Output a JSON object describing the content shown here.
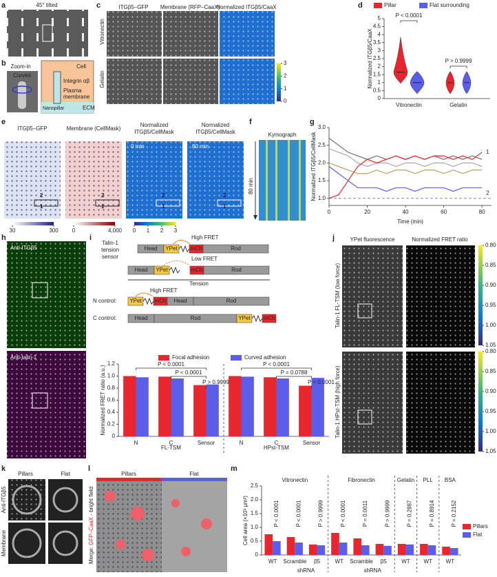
{
  "a": {
    "letter": "a",
    "label": "45° tilted"
  },
  "b": {
    "letter": "b",
    "zoom": "Zoom-in",
    "curved": "Curved",
    "cell": "Cell",
    "integrin": "Integrin αβ",
    "plasma": "Plasma",
    "membrane": "membrane",
    "nanopillar": "Nanopillar",
    "ecm": "ECM"
  },
  "c": {
    "letter": "c",
    "columns": [
      "ITGβ5–GFP",
      "Membrane (RFP–CaaX)",
      "Normalized ITGβ5/CaaX"
    ],
    "rows": [
      "Vitronectin",
      "Gelatin"
    ],
    "colorbar_ticks": [
      0,
      1,
      2,
      3
    ]
  },
  "d": {
    "letter": "d",
    "chart_data": {
      "type": "violin",
      "ylabel": "Normalized ITGβ5/CaaX",
      "categories": [
        "Vitronectin",
        "Gelatin"
      ],
      "series": [
        {
          "name": "Pillar",
          "color": "#e8262d",
          "values": [
            1.65,
            1.0
          ]
        },
        {
          "name": "Flat surrounding",
          "color": "#5b5ee8",
          "values": [
            1.0,
            1.0
          ]
        }
      ],
      "annotations": [
        "P < 0.0001",
        "P > 0.9999"
      ],
      "ylim": [
        0,
        5
      ],
      "yticks": [
        0,
        0.5,
        1,
        1.5,
        2,
        2.5,
        3,
        3.5,
        4,
        4.5,
        5
      ]
    }
  },
  "e": {
    "letter": "e",
    "titles": [
      [
        "ITGβ5–GFP"
      ],
      [
        "Membrane (CellMask)"
      ],
      [
        "Normalized",
        "ITGβ5/CellMask"
      ],
      [
        "Normalized",
        "ITGβ5/CellMask"
      ]
    ],
    "times": [
      "0 min",
      "80 min"
    ],
    "markers": [
      "1",
      "2"
    ],
    "colorbars": [
      [
        30,
        300
      ],
      [
        0,
        {
          "value": 4000,
          "label": "4,000"
        }
      ],
      [
        0,
        1,
        2,
        3
      ]
    ]
  },
  "f": {
    "letter": "f",
    "title": "Kymograph",
    "time": "80 min"
  },
  "g": {
    "letter": "g",
    "chart_data": {
      "type": "line",
      "xlabel": "Time (min)",
      "ylabel": "Normalized ITGβ5/CellMask",
      "x": [
        0,
        5,
        10,
        15,
        20,
        25,
        30,
        35,
        40,
        45,
        50,
        55,
        60,
        65,
        70,
        75,
        80
      ],
      "series": [
        {
          "color": "#6e6e6e",
          "values": [
            2.7,
            2.5,
            2.3,
            2.2,
            2.1,
            2.2,
            2.1,
            2.2,
            2.1,
            2.2,
            2.1,
            2.2,
            2.1,
            2.2,
            2.1,
            2.2,
            2.1
          ]
        },
        {
          "color": "#a8a8a8",
          "values": [
            2.4,
            2.3,
            2.2,
            2.0,
            1.9,
            2.0,
            2.0,
            1.9,
            2.0,
            2.0,
            1.9,
            2.0,
            2.0,
            1.9,
            2.0,
            2.0,
            1.9
          ]
        },
        {
          "color": "#b3a46a",
          "values": [
            2.0,
            1.9,
            1.8,
            1.7,
            1.7,
            1.8,
            1.7,
            1.8,
            1.8,
            1.7,
            1.8,
            1.8,
            1.7,
            1.8,
            1.7,
            1.8,
            1.8
          ]
        },
        {
          "color": "#e8262d",
          "label": "1",
          "values": [
            1.0,
            1.1,
            1.5,
            1.9,
            2.1,
            2.0,
            2.1,
            2.2,
            2.1,
            2.2,
            2.1,
            2.2,
            2.2,
            2.1,
            2.2,
            2.1,
            2.3
          ]
        },
        {
          "color": "#5b5ee8",
          "label": "2",
          "values": [
            1.9,
            1.7,
            1.5,
            1.3,
            1.3,
            1.3,
            1.2,
            1.3,
            1.3,
            1.2,
            1.3,
            1.3,
            1.3,
            1.2,
            1.3,
            1.3,
            1.3
          ]
        }
      ],
      "baseline": 1,
      "xlim": [
        0,
        85
      ],
      "xticks": [
        0,
        20,
        40,
        60,
        80
      ],
      "ylim": [
        0.8,
        3.0
      ],
      "yticks": [
        {
          "value": 1,
          "label": "1.0"
        },
        1.5,
        {
          "value": 2,
          "label": "2.0"
        },
        2.5,
        {
          "value": 3,
          "label": "3.0"
        }
      ]
    }
  },
  "h": {
    "letter": "h",
    "labels": [
      "Anti-ITGβ5",
      "Anti-talin-1"
    ]
  },
  "i": {
    "letter": "i",
    "schematic": {
      "sensor": [
        "Talin-1",
        "tension",
        "sensor"
      ],
      "high": "High FRET",
      "low": "Low FRET",
      "tension": "Tension",
      "n_control": "N control:",
      "c_control": "C control:",
      "head": "Head",
      "ypet": "YPet",
      "mch": "mCh",
      "rod": "Rod"
    },
    "chart_data": {
      "type": "bar",
      "ylabel": "Normalized FRET ratio (a.u.)",
      "categories": [
        "N",
        "C",
        "Sensor",
        "N",
        "C",
        "Sensor"
      ],
      "groups": [
        "FL-TSM",
        "HPst-TSM"
      ],
      "series": [
        {
          "name": "Focal adhesion",
          "color": "#e8262d",
          "values": [
            1.0,
            0.99,
            0.85,
            1.0,
            0.98,
            0.84
          ]
        },
        {
          "name": "Curved adhesion",
          "color": "#5b5ee8",
          "values": [
            0.98,
            0.96,
            0.86,
            0.99,
            0.96,
            0.97
          ]
        }
      ],
      "annotations": [
        "P < 0.0001",
        "P < 0.0001",
        "P > 0.9999",
        "P < 0.0001",
        "P = 0.0788",
        "P < 0.0001"
      ],
      "ylim": [
        0,
        1.2
      ],
      "yticks": [
        0,
        0.2,
        0.4,
        0.6,
        0.8,
        {
          "value": 1,
          "label": "1.0"
        },
        1.2
      ]
    }
  },
  "j": {
    "letter": "j",
    "columns": [
      "YPet fluorescence",
      "Normalized FRET ratio"
    ],
    "rows": [
      "Talin-1 FL-TSM (low force)",
      "Talin-1 HPst-TSM (high force)"
    ],
    "colorbar_ticks": [
      1.05,
      {
        "value": 1,
        "label": "1.00"
      },
      0.95,
      {
        "value": 0.9,
        "label": "0.90"
      },
      0.85,
      {
        "value": 0.8,
        "label": "0.80"
      }
    ]
  },
  "k": {
    "letter": "k",
    "columns": [
      "Pillars",
      "Flat"
    ],
    "rows": [
      "Anti-ITGβ5",
      "Membrane"
    ]
  },
  "l": {
    "letter": "l",
    "columns": [
      "Pillars",
      "Flat"
    ],
    "label": [
      "Merge: ",
      "GFP–CaaX",
      " - bright field"
    ]
  },
  "m": {
    "letter": "m",
    "chart_data": {
      "type": "bar",
      "ylabel": "Cell area (×10³ μm²)",
      "categories": [
        "WT",
        "Scramble",
        "β5",
        "WT",
        "Scramble",
        "β5",
        "WT",
        "WT",
        "WT"
      ],
      "groups": [
        "Vitronectin",
        "Fibronectin",
        "Gelatin",
        "PLL",
        "BSA"
      ],
      "shrna": "shRNA",
      "series": [
        {
          "name": "Pillars",
          "color": "#e8262d",
          "values": [
            0.75,
            0.65,
            0.38,
            0.8,
            0.6,
            0.4,
            0.4,
            0.4,
            0.3
          ]
        },
        {
          "name": "Flat",
          "color": "#5b5ee8",
          "values": [
            0.5,
            0.45,
            0.35,
            0.45,
            0.35,
            0.33,
            0.38,
            0.35,
            0.25
          ]
        }
      ],
      "annotations": [
        "P < 0.0001",
        "P < 0.0001",
        "P > 0.9999",
        "P < 0.0001",
        "P = 0.0011",
        "P > 0.9999",
        "P = 0.2887",
        "P = 0.8914",
        "P = 0.2152"
      ],
      "ylim": [
        0,
        2.5
      ],
      "yticks": [
        0,
        0.5,
        {
          "value": 1,
          "label": "1.0"
        },
        1.5,
        {
          "value": 2,
          "label": "2.0"
        },
        2.5
      ]
    }
  }
}
